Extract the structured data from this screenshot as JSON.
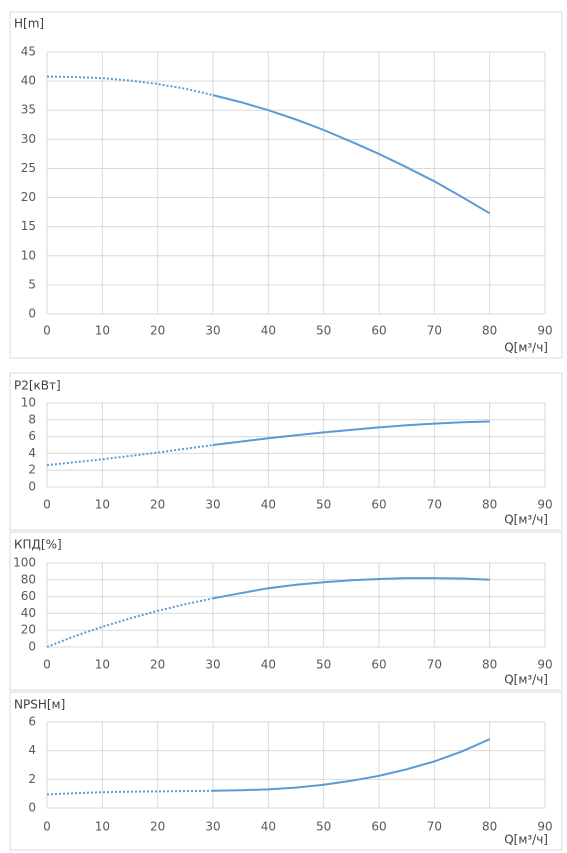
{
  "chart_data": [
    {
      "type": "line",
      "title": "H[m]",
      "x_label": "Q[м³/ч]",
      "x": [
        0,
        5,
        10,
        15,
        20,
        25,
        30,
        35,
        40,
        45,
        50,
        55,
        60,
        65,
        70,
        75,
        80
      ],
      "series": [
        {
          "color": "#5b9bd5",
          "values": [
            40.8,
            40.7,
            40.5,
            40.1,
            39.5,
            38.7,
            37.6,
            36.4,
            35.0,
            33.4,
            31.6,
            29.6,
            27.5,
            25.2,
            22.8,
            20.1,
            17.3
          ]
        }
      ],
      "xlim": [
        0,
        90
      ],
      "xticks": [
        0,
        10,
        20,
        30,
        40,
        50,
        60,
        70,
        80,
        90
      ],
      "ylim": [
        0,
        45
      ],
      "yticks": [
        0,
        5,
        10,
        15,
        20,
        25,
        30,
        35,
        40,
        45
      ],
      "dotted_until": 30,
      "grid": true
    },
    {
      "type": "line",
      "title": "P2[кВт]",
      "x_label": "Q[м³/ч]",
      "x": [
        0,
        5,
        10,
        15,
        20,
        25,
        30,
        35,
        40,
        45,
        50,
        55,
        60,
        65,
        70,
        75,
        80
      ],
      "series": [
        {
          "color": "#5b9bd5",
          "values": [
            2.6,
            2.95,
            3.3,
            3.7,
            4.1,
            4.55,
            5.0,
            5.4,
            5.8,
            6.15,
            6.5,
            6.8,
            7.1,
            7.35,
            7.55,
            7.7,
            7.8
          ]
        }
      ],
      "xlim": [
        0,
        90
      ],
      "xticks": [
        0,
        10,
        20,
        30,
        40,
        50,
        60,
        70,
        80,
        90
      ],
      "ylim": [
        0,
        10
      ],
      "yticks": [
        0,
        2,
        4,
        6,
        8,
        10
      ],
      "dotted_until": 30,
      "grid": true
    },
    {
      "type": "line",
      "title": "КПД[%]",
      "x_label": "Q[м³/ч]",
      "x": [
        0,
        5,
        10,
        15,
        20,
        25,
        30,
        35,
        40,
        45,
        50,
        55,
        60,
        65,
        70,
        75,
        80
      ],
      "series": [
        {
          "color": "#5b9bd5",
          "values": [
            0,
            13,
            24,
            34,
            43,
            51,
            58,
            64,
            70,
            74,
            77,
            79.5,
            81,
            82,
            82,
            81.5,
            80
          ]
        }
      ],
      "xlim": [
        0,
        90
      ],
      "xticks": [
        0,
        10,
        20,
        30,
        40,
        50,
        60,
        70,
        80,
        90
      ],
      "ylim": [
        0,
        100
      ],
      "yticks": [
        0,
        20,
        40,
        60,
        80,
        100
      ],
      "dotted_until": 30,
      "grid": true
    },
    {
      "type": "line",
      "title": "NPSH[м]",
      "x_label": "Q[м³/ч]",
      "x": [
        0,
        5,
        10,
        15,
        20,
        25,
        30,
        35,
        40,
        45,
        50,
        55,
        60,
        65,
        70,
        75,
        80
      ],
      "series": [
        {
          "color": "#5b9bd5",
          "values": [
            0.95,
            1.03,
            1.1,
            1.14,
            1.16,
            1.18,
            1.2,
            1.24,
            1.3,
            1.42,
            1.62,
            1.9,
            2.25,
            2.7,
            3.25,
            3.95,
            4.8
          ]
        }
      ],
      "xlim": [
        0,
        90
      ],
      "xticks": [
        0,
        10,
        20,
        30,
        40,
        50,
        60,
        70,
        80,
        90
      ],
      "ylim": [
        0,
        6
      ],
      "yticks": [
        0,
        2,
        4,
        6
      ],
      "dotted_until": 30,
      "grid": true
    }
  ]
}
